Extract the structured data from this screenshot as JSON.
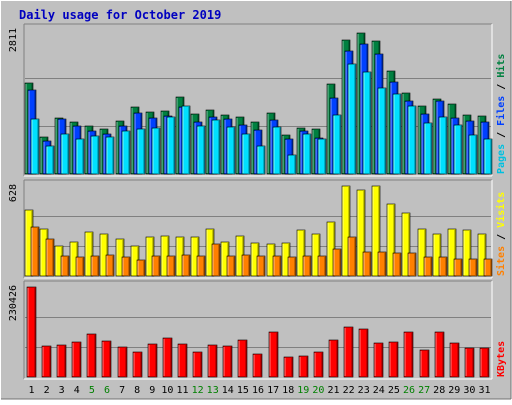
{
  "chart_data": {
    "type": "bar",
    "title": "Daily usage for October 2019",
    "categories": [
      "1",
      "2",
      "3",
      "4",
      "5",
      "6",
      "7",
      "8",
      "9",
      "10",
      "11",
      "12",
      "13",
      "14",
      "15",
      "16",
      "17",
      "18",
      "19",
      "20",
      "21",
      "22",
      "23",
      "24",
      "25",
      "26",
      "27",
      "28",
      "29",
      "30",
      "31"
    ],
    "weekend_days": [
      "5",
      "6",
      "12",
      "13",
      "19",
      "20",
      "26",
      "27"
    ],
    "panels": [
      {
        "id": "hits-files-pages",
        "ymax_label": "2811",
        "ymax": 2811,
        "legend": [
          "Pages",
          "Files",
          "Hits"
        ],
        "series": [
          {
            "name": "Hits",
            "color": "#008040",
            "values": [
              1780,
              730,
              1100,
              1010,
              930,
              880,
              1030,
              1310,
              1210,
              1230,
              1500,
              1170,
              1240,
              1150,
              1120,
              1020,
              1190,
              770,
              890,
              870,
              1750,
              2610,
              2750,
              2600,
              2010,
              1580,
              1330,
              1470,
              1360,
              1160,
              1130
            ]
          },
          {
            "name": "Files",
            "color": "#0040ff",
            "values": [
              1630,
              650,
              1070,
              940,
              840,
              780,
              930,
              1200,
              1100,
              1140,
              1310,
              1010,
              1110,
              1070,
              950,
              860,
              1050,
              690,
              830,
              710,
              1480,
              2400,
              2540,
              2350,
              1800,
              1420,
              1170,
              1430,
              1090,
              1040,
              1010
            ]
          },
          {
            "name": "Pages",
            "color": "#00e0ff",
            "values": [
              1080,
              550,
              790,
              690,
              740,
              720,
              830,
              880,
              900,
              1120,
              1320,
              930,
              1050,
              920,
              780,
              540,
              920,
              380,
              780,
              680,
              1150,
              2150,
              2000,
              1670,
              1560,
              1330,
              1000,
              1110,
              960,
              760,
              680
            ]
          }
        ]
      },
      {
        "id": "visits-sites",
        "ymax_label": "628",
        "ymax": 628,
        "legend": [
          "Sites",
          "Visits"
        ],
        "series": [
          {
            "name": "Visits",
            "color": "#ffff00",
            "values": [
              460,
              330,
              210,
              240,
              310,
              290,
              260,
              210,
              270,
              280,
              270,
              270,
              330,
              240,
              280,
              230,
              220,
              230,
              320,
              290,
              380,
              628,
              600,
              628,
              500,
              440,
              330,
              290,
              330,
              320,
              290
            ]
          },
          {
            "name": "Sites",
            "color": "#ff8000",
            "values": [
              340,
              260,
              140,
              130,
              140,
              150,
              130,
              110,
              140,
              140,
              150,
              140,
              220,
              140,
              150,
              140,
              140,
              130,
              140,
              140,
              190,
              270,
              170,
              170,
              160,
              160,
              130,
              130,
              120,
              120,
              120
            ]
          }
        ]
      },
      {
        "id": "kbytes",
        "ymax_label": "230426",
        "ymax": 230426,
        "legend": [
          "KBytes"
        ],
        "series": [
          {
            "name": "KBytes",
            "color": "#ff0000",
            "values": [
              230426,
              79800,
              82300,
              90100,
              109900,
              91000,
              77000,
              64600,
              85300,
              100000,
              85300,
              64600,
              81500,
              80000,
              94800,
              59800,
              114200,
              51000,
              53500,
              65100,
              94900,
              128800,
              121900,
              86700,
              88600,
              115700,
              68000,
              115900,
              86800,
              73500,
              73000
            ]
          }
        ]
      }
    ]
  }
}
